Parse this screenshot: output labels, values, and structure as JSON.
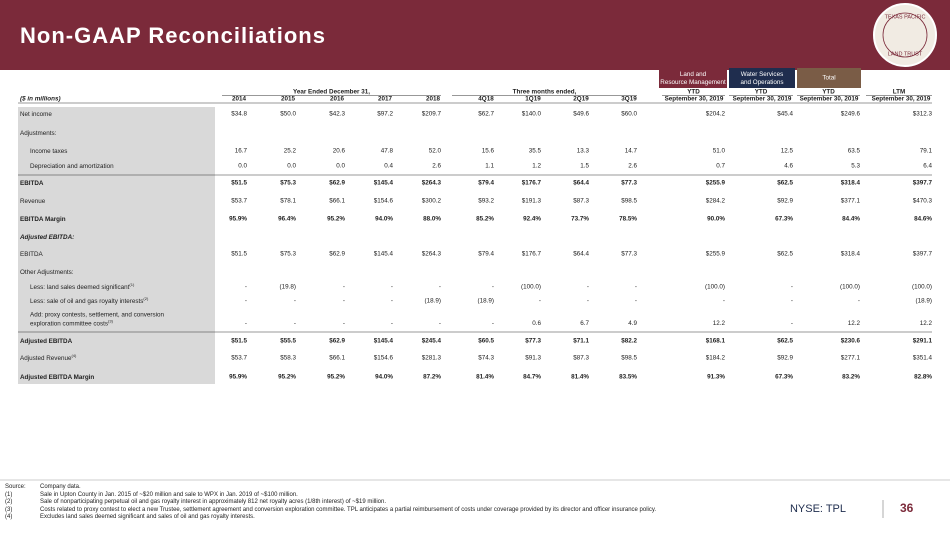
{
  "header": {
    "title": "Non-GAAP Reconciliations",
    "logo": [
      "TEXAS PACIFIC",
      "LAND TRUST"
    ]
  },
  "legend": [
    "Land and Resource Management",
    "Water Services and Operations",
    "Total"
  ],
  "table": {
    "group_headers": [
      "Year Ended December 31,",
      "Three months ended,",
      "YTD",
      "YTD",
      "YTD",
      "LTM"
    ],
    "columns": [
      "($ in millions)",
      "2014",
      "2015",
      "2016",
      "2017",
      "2018",
      "4Q18",
      "1Q19",
      "2Q19",
      "3Q19",
      "September 30, 2019",
      "September 30, 2019",
      "September 30, 2019",
      "September 30, 2019"
    ],
    "rows": [
      {
        "label": "Net income",
        "cells": [
          "$34.8",
          "$50.0",
          "$42.3",
          "$97.2",
          "$209.7",
          "$62.7",
          "$140.0",
          "$49.6",
          "$60.0",
          "$204.2",
          "$45.4",
          "$249.6",
          "$312.3"
        ]
      },
      {
        "label": "Adjustments:"
      },
      {
        "label": "Income taxes",
        "cells": [
          "16.7",
          "25.2",
          "20.6",
          "47.8",
          "52.0",
          "15.6",
          "35.5",
          "13.3",
          "14.7",
          "51.0",
          "12.5",
          "63.5",
          "79.1"
        ]
      },
      {
        "label": "Depreciation and amortization",
        "cells": [
          "0.0",
          "0.0",
          "0.0",
          "0.4",
          "2.6",
          "1.1",
          "1.2",
          "1.5",
          "2.6",
          "0.7",
          "4.6",
          "5.3",
          "6.4"
        ]
      },
      {
        "label": "EBITDA",
        "cells": [
          "$51.5",
          "$75.3",
          "$62.9",
          "$145.4",
          "$264.3",
          "$79.4",
          "$176.7",
          "$64.4",
          "$77.3",
          "$255.9",
          "$62.5",
          "$318.4",
          "$397.7"
        ]
      },
      {
        "label": "Revenue",
        "cells": [
          "$53.7",
          "$78.1",
          "$66.1",
          "$154.6",
          "$300.2",
          "$93.2",
          "$191.3",
          "$87.3",
          "$98.5",
          "$284.2",
          "$92.9",
          "$377.1",
          "$470.3"
        ]
      },
      {
        "label": "EBITDA Margin",
        "cells": [
          "95.9%",
          "96.4%",
          "95.2%",
          "94.0%",
          "88.0%",
          "85.2%",
          "92.4%",
          "73.7%",
          "78.5%",
          "90.0%",
          "67.3%",
          "84.4%",
          "84.6%"
        ]
      },
      {
        "label": "Adjusted EBITDA:"
      },
      {
        "label": "EBITDA",
        "cells": [
          "$51.5",
          "$75.3",
          "$62.9",
          "$145.4",
          "$264.3",
          "$79.4",
          "$176.7",
          "$64.4",
          "$77.3",
          "$255.9",
          "$62.5",
          "$318.4",
          "$397.7"
        ]
      },
      {
        "label": "Other Adjustments:"
      },
      {
        "label": "Less: land sales deemed significant",
        "note": "(1)",
        "cells": [
          "-",
          "(19.8)",
          "-",
          "-",
          "-",
          "-",
          "(100.0)",
          "-",
          "-",
          "(100.0)",
          "-",
          "(100.0)",
          "(100.0)"
        ]
      },
      {
        "label": "Less: sale of oil and gas royalty interests",
        "note": "(2)",
        "cells": [
          "-",
          "-",
          "-",
          "-",
          "(18.9)",
          "(18.9)",
          "-",
          "-",
          "-",
          "-",
          "-",
          "-",
          "(18.9)"
        ]
      },
      {
        "label": [
          "Add: proxy contests, settlement, and conversion",
          "exploration committee costs"
        ],
        "note": "(3)",
        "cells": [
          "-",
          "-",
          "-",
          "-",
          "-",
          "-",
          "0.6",
          "6.7",
          "4.9",
          "12.2",
          "-",
          "12.2",
          "12.2"
        ]
      },
      {
        "label": "Adjusted EBITDA",
        "cells": [
          "$51.5",
          "$55.5",
          "$62.9",
          "$145.4",
          "$245.4",
          "$60.5",
          "$77.3",
          "$71.1",
          "$82.2",
          "$168.1",
          "$62.5",
          "$230.6",
          "$291.1"
        ]
      },
      {
        "label": "Adjusted Revenue",
        "note": "(4)",
        "cells": [
          "$53.7",
          "$58.3",
          "$66.1",
          "$154.6",
          "$281.3",
          "$74.3",
          "$91.3",
          "$87.3",
          "$98.5",
          "$184.2",
          "$92.9",
          "$277.1",
          "$351.4"
        ]
      },
      {
        "label": "Adjusted EBITDA Margin",
        "cells": [
          "95.9%",
          "95.2%",
          "95.2%",
          "94.0%",
          "87.2%",
          "81.4%",
          "84.7%",
          "81.4%",
          "83.5%",
          "91.3%",
          "67.3%",
          "83.2%",
          "82.8%"
        ]
      }
    ]
  },
  "footnotes": [
    {
      "marker": "Source:",
      "text": "Company data."
    },
    {
      "marker": "(1)",
      "text": "Sale in Upton County in Jan. 2015 of ~$20 million and sale to WPX in Jan. 2019 of ~$100 million."
    },
    {
      "marker": "(2)",
      "text": "Sale of nonparticipating perpetual oil and gas royalty interest in approximately 812 net royalty acres (1/8th interest) of ~$19 million."
    },
    {
      "marker": "(3)",
      "text": "Costs related to proxy contest to elect a new Trustee, settlement agreement and conversion exploration committee. TPL anticipates a partial reimbursement of costs under coverage provided by its director and officer insurance policy."
    },
    {
      "marker": "(4)",
      "text": "Excludes land sales deemed significant and sales of oil and gas royalty interests."
    }
  ],
  "footer": {
    "ticker": "NYSE: TPL",
    "page": "36"
  }
}
